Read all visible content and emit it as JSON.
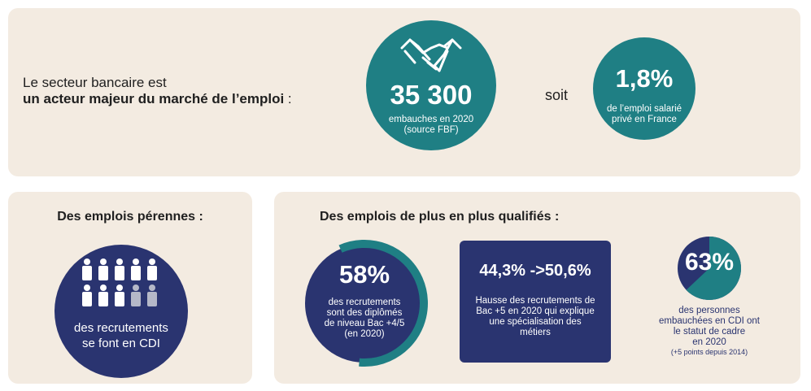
{
  "top": {
    "intro_line1": "Le secteur bancaire est",
    "intro_line2_bold": "un acteur majeur du marché de l’emploi",
    "intro_line2_suffix": " :",
    "hires_value": "35 300",
    "hires_caption_line1": "embauches en 2020",
    "hires_caption_line2": "(source FBF)",
    "soit": "soit",
    "share_value": "1,8%",
    "share_caption_line1": "de l’emploi salarié",
    "share_caption_line2": "privé en France",
    "icon": "handshake-icon",
    "teal": "#1f7f84"
  },
  "left": {
    "title": "Des emplois pérennes :",
    "caption_line1": "des recrutements",
    "caption_line2": "se font en CDI",
    "icon": "people-icon",
    "people_total": 10,
    "people_cdi": 8,
    "navy": "#2a3470"
  },
  "right": {
    "title": "Des emplois de plus en plus qualifiés :",
    "pct58_value": "58%",
    "pct58_caption_line1": "des recrutements",
    "pct58_caption_line2": "sont des diplômés",
    "pct58_caption_line3": "de niveau Bac +4/5",
    "pct58_caption_line4": "(en 2020)",
    "pct58_fraction": 0.58,
    "bac5_value": "44,3% ->50,6%",
    "bac5_caption_line1": "Hausse des recrutements de",
    "bac5_caption_line2": "Bac +5 en 2020 qui explique",
    "bac5_caption_line3": "une spécialisation des",
    "bac5_caption_line4": "métiers",
    "pct63_value": "63%",
    "pct63_fraction": 0.63,
    "pct63_caption_line1": "des personnes",
    "pct63_caption_line2": "embauchées en CDI ont",
    "pct63_caption_line3": "le statut de cadre",
    "pct63_caption_line4": "en 2020",
    "pct63_caption_line5": "(+5 points depuis 2014)"
  }
}
